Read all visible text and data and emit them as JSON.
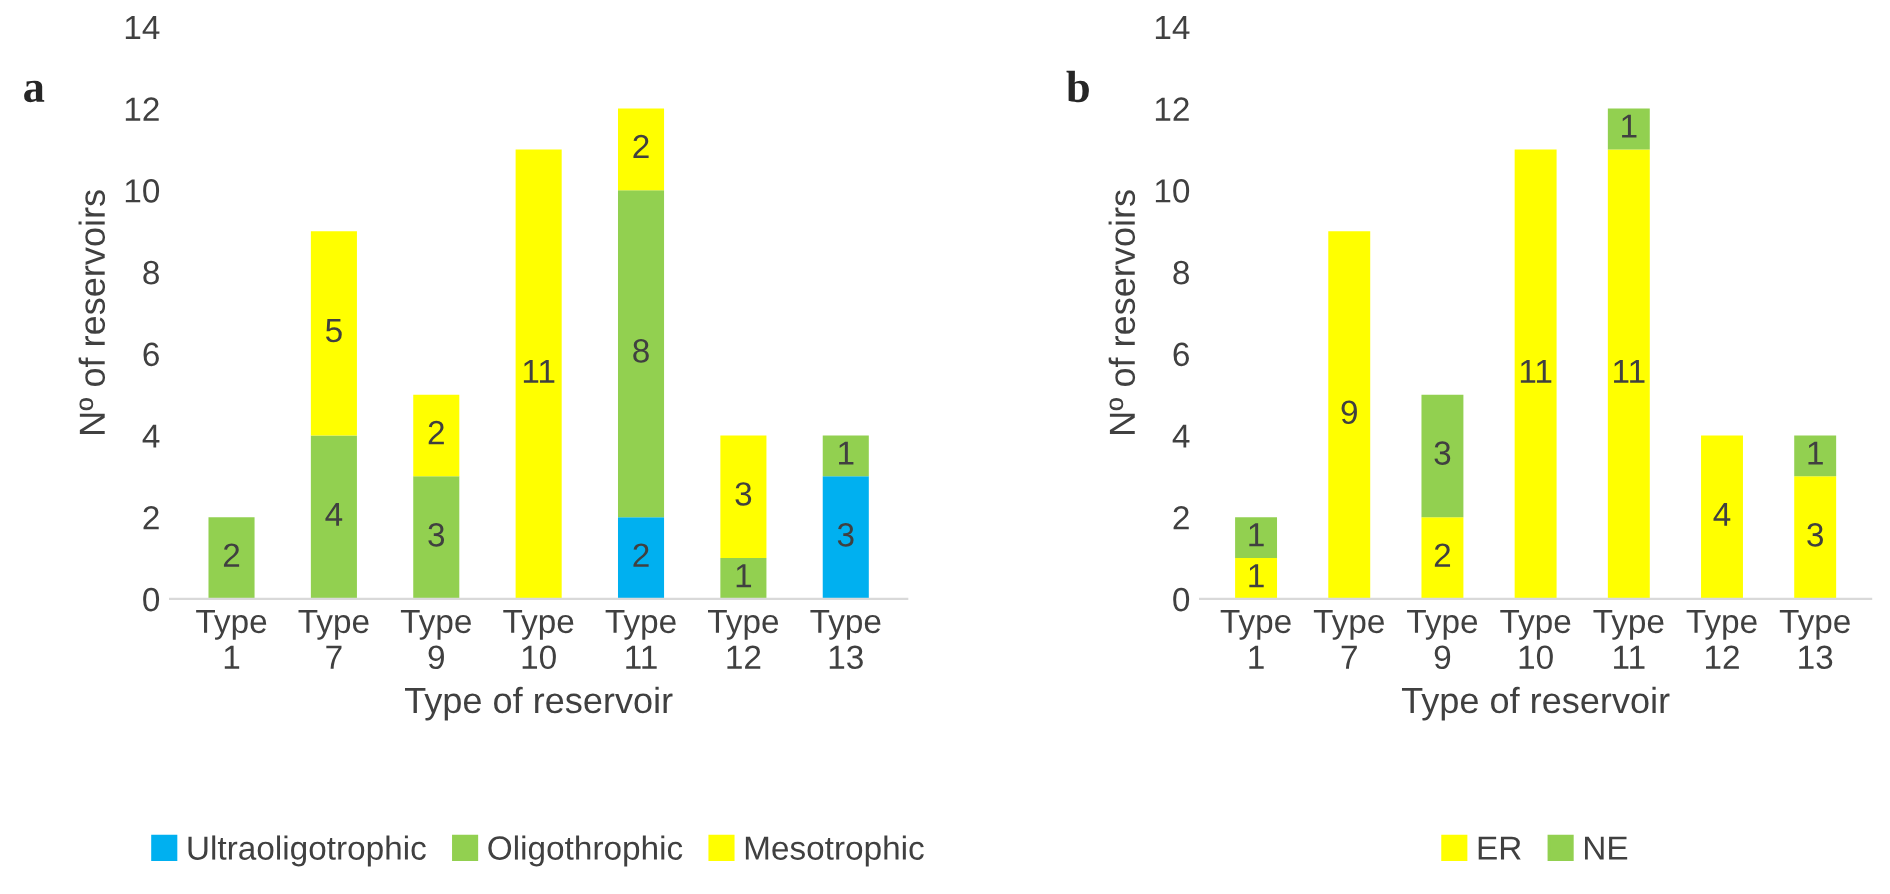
{
  "chart_data": [
    {
      "type": "bar",
      "title": "a",
      "stacked": true,
      "categories": [
        "Type 1",
        "Type 7",
        "Type 9",
        "Type 10",
        "Type 11",
        "Type 12",
        "Type 13"
      ],
      "xlabel": "Type of reservoir",
      "ylabel": "Nº of reservoirs",
      "ylim": [
        0,
        14
      ],
      "yticks": [
        0,
        2,
        4,
        6,
        8,
        10,
        12,
        14
      ],
      "grid": false,
      "legend": "bottom",
      "series": [
        {
          "name": "Ultraoligotrophic",
          "color": "#00b0f0",
          "values": [
            0,
            0,
            0,
            0,
            2,
            0,
            3
          ],
          "value_labels": [
            null,
            null,
            null,
            null,
            "2",
            null,
            "3"
          ]
        },
        {
          "name": "Oligothrophic",
          "color": "#92d050",
          "values": [
            2,
            4,
            3,
            0,
            8,
            1,
            1
          ],
          "value_labels": [
            "2",
            "4",
            "3",
            null,
            "8",
            "1",
            "1"
          ]
        },
        {
          "name": "Mesotrophic",
          "color": "#ffff00",
          "values": [
            0,
            5,
            2,
            11,
            2,
            3,
            0
          ],
          "value_labels": [
            null,
            "5",
            "2",
            "11",
            "2",
            "3",
            null
          ]
        }
      ]
    },
    {
      "type": "bar",
      "title": "b",
      "stacked": true,
      "categories": [
        "Type 1",
        "Type 7",
        "Type 9",
        "Type 10",
        "Type 11",
        "Type 12",
        "Type 13"
      ],
      "xlabel": "Type of reservoir",
      "ylabel": "Nº of reservoirs",
      "ylim": [
        0,
        14
      ],
      "yticks": [
        0,
        2,
        4,
        6,
        8,
        10,
        12,
        14
      ],
      "grid": false,
      "legend": "bottom",
      "series": [
        {
          "name": "ER",
          "color": "#ffff00",
          "values": [
            1,
            9,
            2,
            11,
            11,
            4,
            3
          ],
          "value_labels": [
            "1",
            "9",
            "2",
            "11",
            "11",
            "4",
            "3"
          ]
        },
        {
          "name": "NE",
          "color": "#92d050",
          "values": [
            1,
            0,
            3,
            0,
            1,
            0,
            1
          ],
          "value_labels": [
            "1",
            null,
            "3",
            null,
            "1",
            null,
            "1"
          ]
        }
      ]
    }
  ]
}
